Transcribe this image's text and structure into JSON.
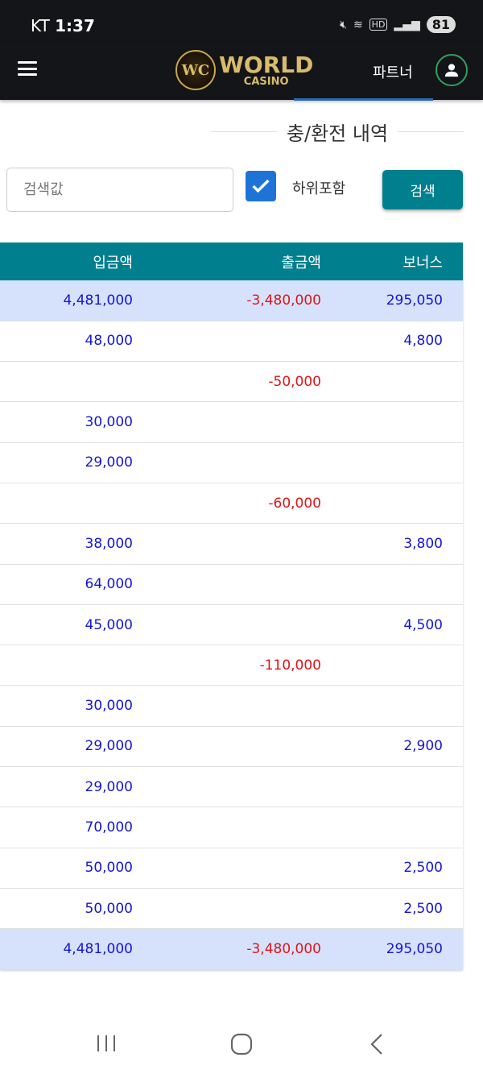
{
  "status_bar": {
    "carrier": "KT",
    "time": "1:37",
    "battery": "81"
  },
  "header": {
    "logo_mark": "WC",
    "logo_text": "WORLD",
    "logo_sub": "CASINO",
    "partner_label": "파트너"
  },
  "page": {
    "title": "충/환전 내역"
  },
  "search": {
    "placeholder": "검색값",
    "value": "",
    "include_sub_label": "하위포함",
    "include_sub_checked": true,
    "button_label": "검색"
  },
  "colors": {
    "accent": "#00808f",
    "deposit": "#1515d8",
    "withdraw": "#e0141a",
    "summary_bg": "#d6e2fb"
  },
  "table": {
    "headers": [
      "입금액",
      "출금액",
      "보너스"
    ],
    "summary_top": {
      "deposit": "4,481,000",
      "withdraw": "-3,480,000",
      "bonus": "295,050"
    },
    "rows": [
      {
        "deposit": "48,000",
        "withdraw": "",
        "bonus": "4,800"
      },
      {
        "deposit": "",
        "withdraw": "-50,000",
        "bonus": ""
      },
      {
        "deposit": "30,000",
        "withdraw": "",
        "bonus": ""
      },
      {
        "deposit": "29,000",
        "withdraw": "",
        "bonus": ""
      },
      {
        "deposit": "",
        "withdraw": "-60,000",
        "bonus": ""
      },
      {
        "deposit": "38,000",
        "withdraw": "",
        "bonus": "3,800"
      },
      {
        "deposit": "64,000",
        "withdraw": "",
        "bonus": ""
      },
      {
        "deposit": "45,000",
        "withdraw": "",
        "bonus": "4,500"
      },
      {
        "deposit": "",
        "withdraw": "-110,000",
        "bonus": ""
      },
      {
        "deposit": "30,000",
        "withdraw": "",
        "bonus": ""
      },
      {
        "deposit": "29,000",
        "withdraw": "",
        "bonus": "2,900"
      },
      {
        "deposit": "29,000",
        "withdraw": "",
        "bonus": ""
      },
      {
        "deposit": "70,000",
        "withdraw": "",
        "bonus": ""
      },
      {
        "deposit": "50,000",
        "withdraw": "",
        "bonus": "2,500"
      },
      {
        "deposit": "50,000",
        "withdraw": "",
        "bonus": "2,500"
      }
    ],
    "summary_bottom": {
      "deposit": "4,481,000",
      "withdraw": "-3,480,000",
      "bonus": "295,050"
    }
  }
}
